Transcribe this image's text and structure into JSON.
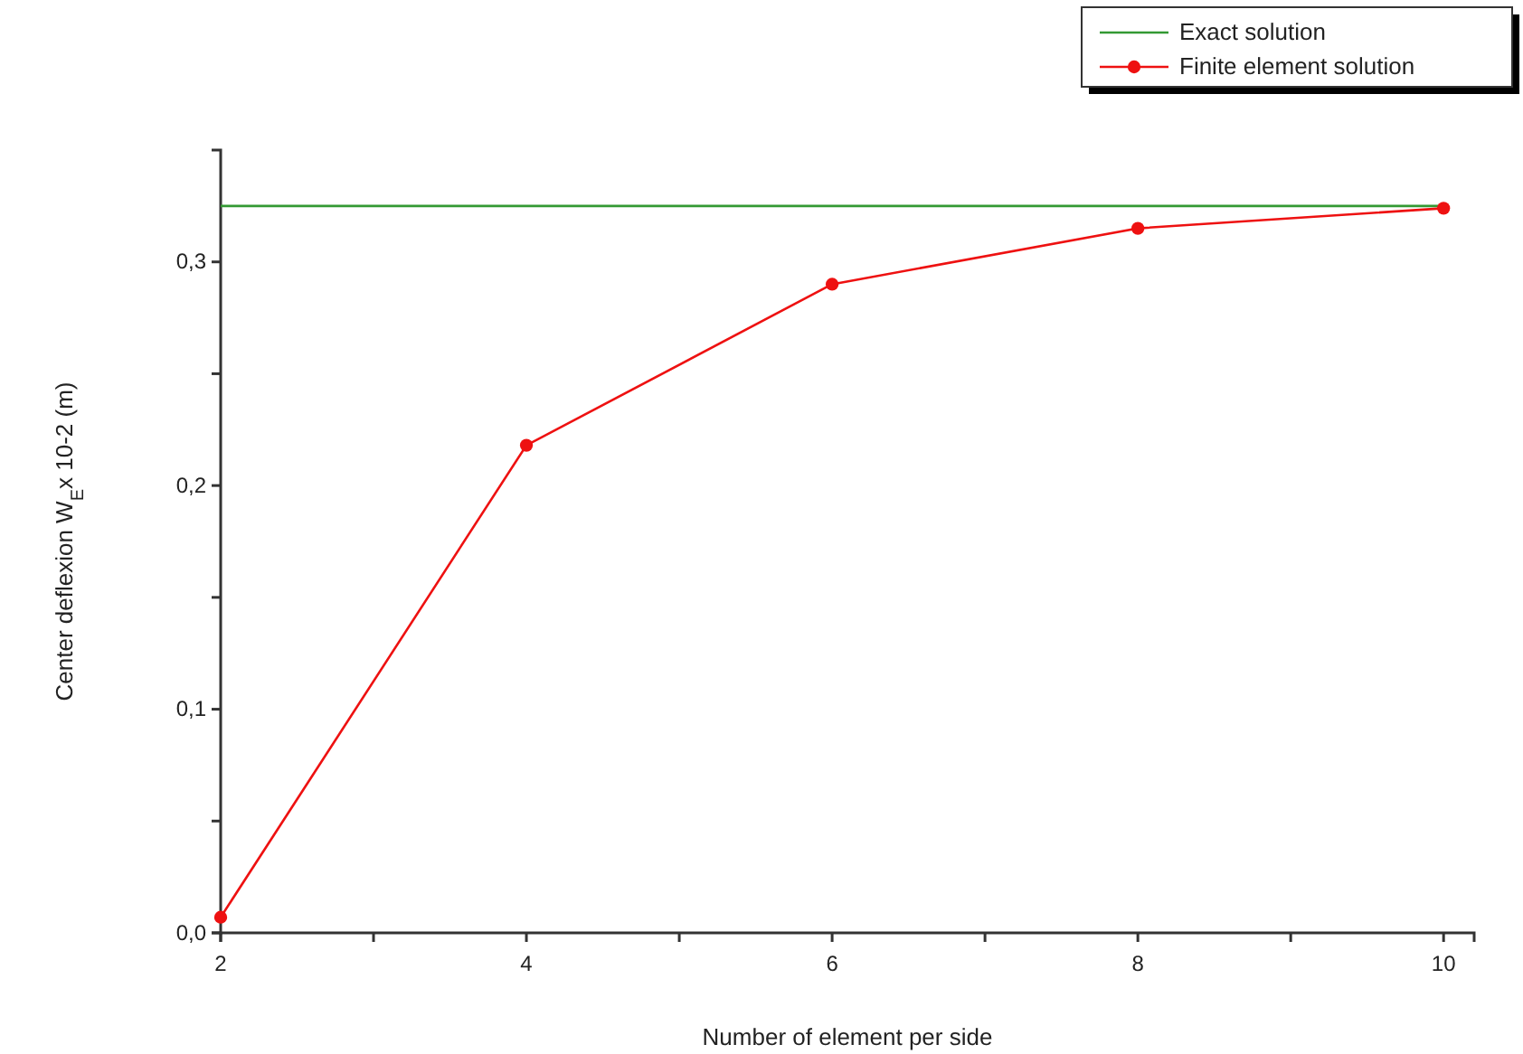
{
  "chart_data": {
    "type": "line",
    "xlabel": "Number of element per side",
    "ylabel": "Center deflexion W$_{E}$x 10-2 (m)",
    "xlim": [
      2,
      10.2
    ],
    "ylim": [
      0,
      0.35
    ],
    "xticks": [
      2,
      {
        "value": 3,
        "label": null
      },
      4,
      {
        "value": 5,
        "label": null
      },
      6,
      {
        "value": 7,
        "label": null
      },
      8,
      {
        "value": 9,
        "label": null
      },
      10
    ],
    "yticks": [
      {
        "value": 0,
        "label": "0,0"
      },
      {
        "value": 0.05,
        "label": null
      },
      {
        "value": 0.1,
        "label": "0,1"
      },
      {
        "value": 0.15,
        "label": null
      },
      {
        "value": 0.2,
        "label": "0,2"
      },
      {
        "value": 0.25,
        "label": null
      },
      {
        "value": 0.3,
        "label": "0,3"
      }
    ],
    "legend": "top right",
    "grid": false,
    "series": [
      {
        "name": "Exact solution",
        "color": "#339933",
        "x": [
          2,
          10
        ],
        "values": [
          0.325,
          0.325
        ],
        "marker": "none"
      },
      {
        "name": "Finite element solution",
        "color": "#ee1111",
        "x": [
          2,
          4,
          6,
          8,
          10
        ],
        "values": [
          0.007,
          0.218,
          0.29,
          0.315,
          0.324
        ],
        "marker": "circle"
      }
    ]
  }
}
